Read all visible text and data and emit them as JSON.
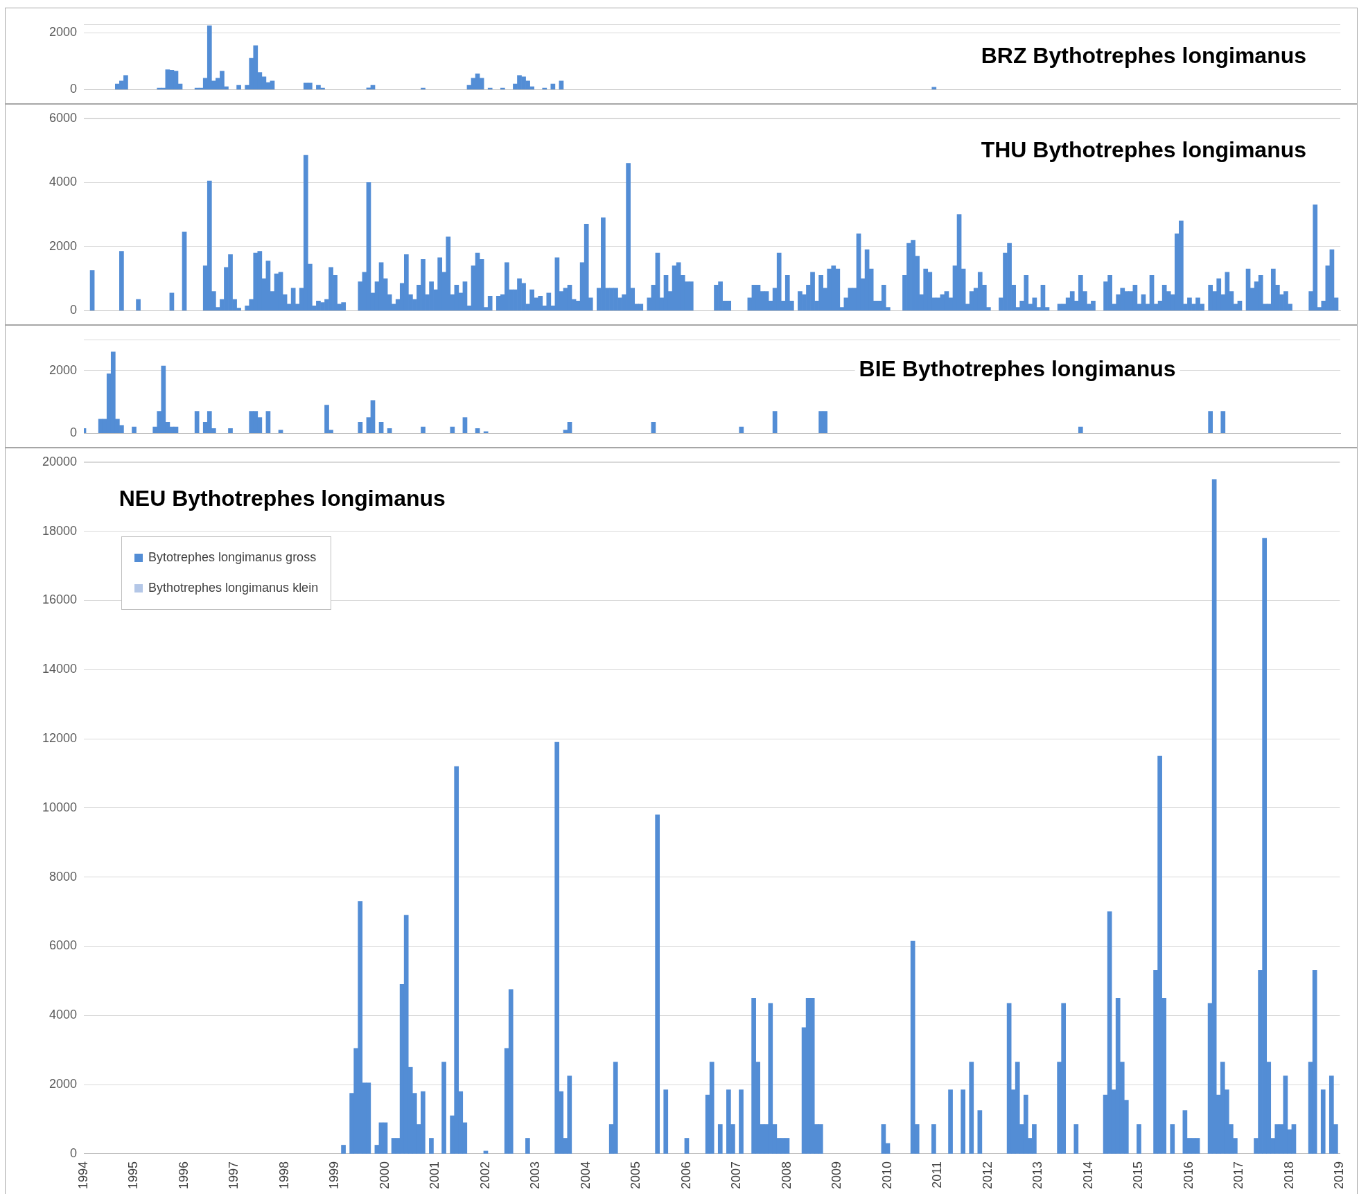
{
  "chart_data": [
    {
      "type": "bar",
      "title": "BRZ Bythotrephes longimanus",
      "xlim": [
        "1994-01",
        "2019-01"
      ],
      "xticks": [
        "1994",
        "1995",
        "1996",
        "1997",
        "1998",
        "1999",
        "2000",
        "2001",
        "2002",
        "2003",
        "2004",
        "2005",
        "2006",
        "2007",
        "2008",
        "2009",
        "2010",
        "2011",
        "2012",
        "2013",
        "2014",
        "2015",
        "2016",
        "2017",
        "2018",
        "2019"
      ],
      "ylim": [
        0,
        2300
      ],
      "yticks": [
        0,
        2000
      ],
      "grid": "y",
      "tick_labels": "y",
      "series": [
        {
          "color": "#538dd5",
          "x": [
            "1994-09",
            "1994-10",
            "1994-11",
            "1995-07",
            "1995-08",
            "1995-09",
            "1995-10",
            "1995-11",
            "1995-12",
            "1996-04",
            "1996-05",
            "1996-06",
            "1996-07",
            "1996-08",
            "1996-09",
            "1996-10",
            "1996-11",
            "1997-02",
            "1997-04",
            "1997-05",
            "1997-06",
            "1997-07",
            "1997-08",
            "1997-09",
            "1997-10",
            "1998-06",
            "1998-07",
            "1998-09",
            "1998-10",
            "1999-09",
            "1999-10",
            "2000-10",
            "2001-09",
            "2001-10",
            "2001-11",
            "2001-12",
            "2002-02",
            "2002-05",
            "2002-08",
            "2002-09",
            "2002-10",
            "2002-11",
            "2002-12",
            "2003-03",
            "2003-05",
            "2003-07",
            "2010-12"
          ],
          "values": [
            200,
            300,
            500,
            50,
            50,
            700,
            680,
            650,
            200,
            50,
            50,
            400,
            2250,
            300,
            400,
            650,
            100,
            150,
            150,
            1100,
            1550,
            600,
            450,
            250,
            300,
            230,
            230,
            150,
            50,
            60,
            150,
            50,
            150,
            400,
            550,
            400,
            50,
            50,
            200,
            500,
            450,
            300,
            100,
            50,
            200,
            300,
            80
          ]
        }
      ]
    },
    {
      "type": "bar",
      "title": "THU Bythotrephes longimanus",
      "xlim": [
        "1994-01",
        "2019-01"
      ],
      "xticks": [
        "1994",
        "1995",
        "1996",
        "1997",
        "1998",
        "1999",
        "2000",
        "2001",
        "2002",
        "2003",
        "2004",
        "2005",
        "2006",
        "2007",
        "2008",
        "2009",
        "2010",
        "2011",
        "2012",
        "2013",
        "2014",
        "2015",
        "2016",
        "2017",
        "2018",
        "2019"
      ],
      "ylim": [
        0,
        6000
      ],
      "yticks": [
        0,
        2000,
        4000,
        6000
      ],
      "grid": "y",
      "tick_labels": "y",
      "series": [
        {
          "color": "#538dd5",
          "x": [
            "1994-03",
            "1994-10",
            "1995-02",
            "1995-10",
            "1996-01",
            "1996-06",
            "1996-07",
            "1996-08",
            "1996-09",
            "1996-10",
            "1996-11",
            "1996-12",
            "1997-01",
            "1997-02",
            "1997-04",
            "1997-05",
            "1997-06",
            "1997-07",
            "1997-08",
            "1997-09",
            "1997-10",
            "1997-11",
            "1997-12",
            "1998-01",
            "1998-02",
            "1998-03",
            "1998-04",
            "1998-05",
            "1998-06",
            "1998-07",
            "1998-08",
            "1998-09",
            "1998-10",
            "1998-11",
            "1998-12",
            "1999-01",
            "1999-02",
            "1999-03",
            "1999-07",
            "1999-08",
            "1999-09",
            "1999-10",
            "1999-11",
            "1999-12",
            "2000-01",
            "2000-02",
            "2000-03",
            "2000-04",
            "2000-05",
            "2000-06",
            "2000-07",
            "2000-08",
            "2000-09",
            "2000-10",
            "2000-11",
            "2000-12",
            "2001-01",
            "2001-02",
            "2001-03",
            "2001-04",
            "2001-05",
            "2001-06",
            "2001-07",
            "2001-08",
            "2001-09",
            "2001-10",
            "2001-11",
            "2001-12",
            "2002-01",
            "2002-02",
            "2002-04",
            "2002-05",
            "2002-06",
            "2002-07",
            "2002-08",
            "2002-09",
            "2002-10",
            "2002-11",
            "2002-12",
            "2003-01",
            "2003-02",
            "2003-03",
            "2003-04",
            "2003-05",
            "2003-06",
            "2003-07",
            "2003-08",
            "2003-09",
            "2003-10",
            "2003-11",
            "2003-12",
            "2004-01",
            "2004-02",
            "2004-04",
            "2004-05",
            "2004-06",
            "2004-07",
            "2004-08",
            "2004-09",
            "2004-10",
            "2004-11",
            "2004-12",
            "2005-01",
            "2005-02",
            "2005-04",
            "2005-05",
            "2005-06",
            "2005-07",
            "2005-08",
            "2005-09",
            "2005-10",
            "2005-11",
            "2005-12",
            "2006-01",
            "2006-02",
            "2006-08",
            "2006-09",
            "2006-10",
            "2006-11",
            "2007-04",
            "2007-05",
            "2007-06",
            "2007-07",
            "2007-08",
            "2007-09",
            "2007-10",
            "2007-11",
            "2007-12",
            "2008-01",
            "2008-02",
            "2008-04",
            "2008-05",
            "2008-06",
            "2008-07",
            "2008-08",
            "2008-09",
            "2008-10",
            "2008-11",
            "2008-12",
            "2009-01",
            "2009-02",
            "2009-03",
            "2009-04",
            "2009-05",
            "2009-06",
            "2009-07",
            "2009-08",
            "2009-09",
            "2009-10",
            "2009-11",
            "2009-12",
            "2010-01",
            "2010-05",
            "2010-06",
            "2010-07",
            "2010-08",
            "2010-09",
            "2010-10",
            "2010-11",
            "2010-12",
            "2011-01",
            "2011-02",
            "2011-03",
            "2011-04",
            "2011-05",
            "2011-06",
            "2011-07",
            "2011-08",
            "2011-09",
            "2011-10",
            "2011-11",
            "2011-12",
            "2012-01",
            "2012-04",
            "2012-05",
            "2012-06",
            "2012-07",
            "2012-08",
            "2012-09",
            "2012-10",
            "2012-11",
            "2012-12",
            "2013-01",
            "2013-02",
            "2013-03",
            "2013-06",
            "2013-07",
            "2013-08",
            "2013-09",
            "2013-10",
            "2013-11",
            "2013-12",
            "2014-01",
            "2014-02",
            "2014-05",
            "2014-06",
            "2014-07",
            "2014-08",
            "2014-09",
            "2014-10",
            "2014-11",
            "2014-12",
            "2015-01",
            "2015-02",
            "2015-03",
            "2015-04",
            "2015-05",
            "2015-06",
            "2015-07",
            "2015-08",
            "2015-09",
            "2015-10",
            "2015-11",
            "2015-12",
            "2016-01",
            "2016-02",
            "2016-03",
            "2016-04",
            "2016-06",
            "2016-07",
            "2016-08",
            "2016-09",
            "2016-10",
            "2016-11",
            "2016-12",
            "2017-01",
            "2017-03",
            "2017-04",
            "2017-05",
            "2017-06",
            "2017-07",
            "2017-08",
            "2017-09",
            "2017-10",
            "2017-11",
            "2017-12",
            "2018-01",
            "2018-06",
            "2018-07",
            "2018-08",
            "2018-09",
            "2018-10",
            "2018-11",
            "2018-12"
          ],
          "values": [
            1250,
            1850,
            350,
            550,
            2450,
            1400,
            4050,
            600,
            100,
            350,
            1350,
            1750,
            350,
            80,
            150,
            350,
            1800,
            1850,
            1000,
            1550,
            600,
            1150,
            1200,
            500,
            200,
            700,
            200,
            700,
            4850,
            1450,
            150,
            300,
            250,
            350,
            1350,
            1100,
            200,
            250,
            900,
            1200,
            4000,
            550,
            900,
            1500,
            1000,
            500,
            200,
            350,
            850,
            1750,
            500,
            350,
            800,
            1600,
            500,
            900,
            650,
            1650,
            1200,
            2300,
            500,
            800,
            550,
            900,
            150,
            1400,
            1800,
            1600,
            100,
            450,
            450,
            500,
            1500,
            650,
            650,
            1000,
            850,
            200,
            650,
            400,
            450,
            150,
            550,
            150,
            1650,
            600,
            700,
            800,
            350,
            300,
            1500,
            2700,
            400,
            700,
            2900,
            700,
            700,
            700,
            400,
            500,
            4600,
            700,
            200,
            200,
            400,
            800,
            1800,
            400,
            1100,
            600,
            1400,
            1500,
            1100,
            900,
            900,
            800,
            900,
            300,
            300,
            400,
            800,
            800,
            600,
            600,
            300,
            700,
            1800,
            300,
            1100,
            300,
            600,
            500,
            800,
            1200,
            300,
            1100,
            700,
            1300,
            1400,
            1300,
            100,
            400,
            700,
            700,
            2400,
            1000,
            1900,
            1300,
            300,
            300,
            800,
            100,
            1100,
            2100,
            2200,
            1700,
            500,
            1300,
            1200,
            400,
            400,
            500,
            600,
            400,
            1400,
            3000,
            1300,
            200,
            600,
            700,
            1200,
            800,
            100,
            400,
            1800,
            2100,
            800,
            100,
            300,
            1100,
            200,
            400,
            100,
            800,
            100,
            200,
            200,
            400,
            600,
            300,
            1100,
            600,
            200,
            300,
            900,
            1100,
            200,
            500,
            700,
            600,
            600,
            800,
            200,
            500,
            200,
            1100,
            200,
            300,
            800,
            600,
            500,
            2400,
            2800,
            200,
            400,
            200,
            400,
            200,
            800,
            600,
            1000,
            500,
            1200,
            600,
            200,
            300,
            1300,
            700,
            900,
            1100,
            200,
            200,
            1300,
            800,
            500,
            600,
            200,
            600,
            3300,
            100,
            300,
            1400,
            1900,
            400
          ]
        }
      ]
    },
    {
      "type": "bar",
      "title": "BIE Bythotrephes longimanus",
      "xlim": [
        "1994-01",
        "2019-01"
      ],
      "xticks": [
        "1994",
        "1995",
        "1996",
        "1997",
        "1998",
        "1999",
        "2000",
        "2001",
        "2002",
        "2003",
        "2004",
        "2005",
        "2006",
        "2007",
        "2008",
        "2009",
        "2010",
        "2011",
        "2012",
        "2013",
        "2014",
        "2015",
        "2016",
        "2017",
        "2018",
        "2019"
      ],
      "ylim": [
        0,
        3000
      ],
      "yticks": [
        0,
        2000
      ],
      "grid": "y",
      "tick_labels": "y",
      "series": [
        {
          "color": "#538dd5",
          "x": [
            "1994-01",
            "1994-05",
            "1994-06",
            "1994-07",
            "1994-08",
            "1994-09",
            "1994-10",
            "1995-01",
            "1995-06",
            "1995-07",
            "1995-08",
            "1995-09",
            "1995-10",
            "1995-11",
            "1996-04",
            "1996-06",
            "1996-07",
            "1996-08",
            "1996-12",
            "1997-05",
            "1997-06",
            "1997-07",
            "1997-09",
            "1997-12",
            "1998-11",
            "1998-12",
            "1999-07",
            "1999-09",
            "1999-10",
            "1999-12",
            "2000-02",
            "2000-10",
            "2001-05",
            "2001-08",
            "2001-11",
            "2002-01",
            "2003-08",
            "2003-09",
            "2005-05",
            "2007-02",
            "2007-10",
            "2008-09",
            "2008-10",
            "2013-11",
            "2016-06",
            "2016-09"
          ],
          "values": [
            150,
            450,
            450,
            1900,
            2600,
            450,
            250,
            200,
            200,
            700,
            2150,
            350,
            200,
            200,
            700,
            350,
            700,
            150,
            150,
            700,
            700,
            500,
            700,
            100,
            900,
            100,
            350,
            500,
            1050,
            350,
            150,
            200,
            200,
            500,
            150,
            50,
            100,
            350,
            350,
            200,
            700,
            700,
            700,
            200,
            700,
            700
          ]
        }
      ]
    },
    {
      "type": "bar",
      "title": "NEU Bythotrephes longimanus",
      "xlim": [
        "1994-01",
        "2019-01"
      ],
      "xticks": [
        "1994",
        "1995",
        "1996",
        "1997",
        "1998",
        "1999",
        "2000",
        "2001",
        "2002",
        "2003",
        "2004",
        "2005",
        "2006",
        "2007",
        "2008",
        "2009",
        "2010",
        "2011",
        "2012",
        "2013",
        "2014",
        "2015",
        "2016",
        "2017",
        "2018",
        "2019"
      ],
      "ylim": [
        0,
        20000
      ],
      "yticks": [
        0,
        2000,
        4000,
        6000,
        8000,
        10000,
        12000,
        14000,
        16000,
        18000,
        20000
      ],
      "grid": "y",
      "legend": "top left",
      "series": [
        {
          "name": "Bytotrephes longimanus gross",
          "color": "#538dd5",
          "x": [
            "1999-03",
            "1999-05",
            "1999-06",
            "1999-07",
            "1999-08",
            "1999-09",
            "1999-11",
            "1999-12",
            "2000-01",
            "2000-03",
            "2000-04",
            "2000-05",
            "2000-06",
            "2000-07",
            "2000-08",
            "2000-09",
            "2000-10",
            "2000-12",
            "2001-03",
            "2001-05",
            "2001-06",
            "2001-07",
            "2001-08",
            "2002-01",
            "2002-06",
            "2002-07",
            "2002-11",
            "2003-06",
            "2003-07",
            "2003-08",
            "2003-09",
            "2004-07",
            "2004-08",
            "2005-06",
            "2005-08",
            "2006-01",
            "2006-06",
            "2006-07",
            "2006-09",
            "2006-11",
            "2006-12",
            "2007-02",
            "2007-05",
            "2007-06",
            "2007-07",
            "2007-08",
            "2007-09",
            "2007-10",
            "2007-11",
            "2007-12",
            "2008-01",
            "2008-05",
            "2008-06",
            "2008-07",
            "2008-08",
            "2008-09",
            "2009-12",
            "2010-01",
            "2010-07",
            "2010-08",
            "2010-12",
            "2011-04",
            "2011-07",
            "2011-09",
            "2011-11",
            "2012-06",
            "2012-07",
            "2012-08",
            "2012-09",
            "2012-10",
            "2012-11",
            "2012-12",
            "2013-06",
            "2013-07",
            "2013-10",
            "2014-05",
            "2014-06",
            "2014-07",
            "2014-08",
            "2014-09",
            "2014-10",
            "2015-01",
            "2015-05",
            "2015-06",
            "2015-07",
            "2015-09",
            "2015-12",
            "2016-01",
            "2016-02",
            "2016-03",
            "2016-06",
            "2016-07",
            "2016-08",
            "2016-09",
            "2016-10",
            "2016-11",
            "2016-12",
            "2017-05",
            "2017-06",
            "2017-07",
            "2017-08",
            "2017-09",
            "2017-10",
            "2017-11",
            "2017-12",
            "2018-01",
            "2018-02",
            "2018-06",
            "2018-07",
            "2018-09",
            "2018-11",
            "2018-12"
          ],
          "values": [
            250,
            1750,
            3050,
            7300,
            2050,
            2050,
            250,
            900,
            900,
            450,
            450,
            4900,
            6900,
            2500,
            1750,
            850,
            1800,
            450,
            2650,
            1100,
            11200,
            1800,
            900,
            80,
            3050,
            4750,
            450,
            11900,
            1800,
            450,
            2250,
            850,
            2650,
            9800,
            1850,
            450,
            1700,
            2650,
            850,
            1850,
            850,
            1850,
            4500,
            2650,
            850,
            850,
            4350,
            850,
            450,
            450,
            450,
            3650,
            4500,
            4500,
            850,
            850,
            850,
            300,
            6150,
            850,
            850,
            1850,
            1850,
            2650,
            1250,
            4350,
            1850,
            2650,
            850,
            1700,
            450,
            850,
            2650,
            4350,
            850,
            1700,
            7000,
            1850,
            4500,
            2650,
            1550,
            850,
            5300,
            11500,
            4500,
            850,
            1250,
            450,
            450,
            450,
            4350,
            19500,
            1700,
            2650,
            1850,
            850,
            450,
            450,
            5300,
            17800,
            2650,
            450,
            850,
            850,
            2250,
            700,
            850,
            2650,
            5300,
            1850,
            2250,
            850
          ]
        },
        {
          "name": "Bythotrephes longimanus klein",
          "color": "#b4c7e7"
        }
      ]
    }
  ]
}
